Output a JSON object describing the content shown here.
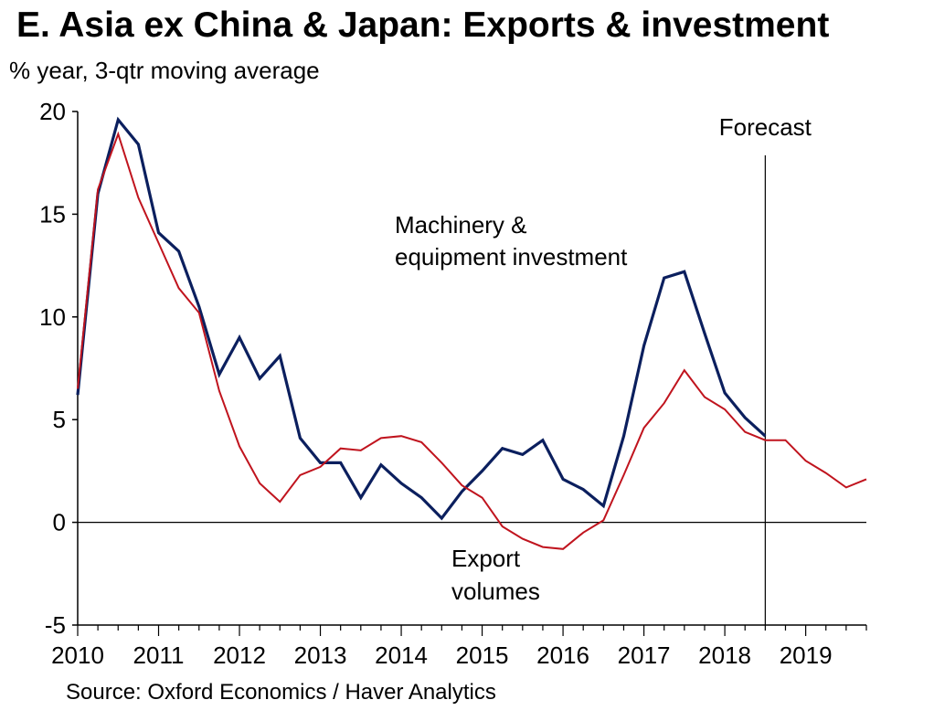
{
  "title": "E. Asia ex China & Japan: Exports & investment",
  "subtitle": "% year, 3-qtr moving average",
  "source": "Source: Oxford Economics / Haver Analytics",
  "forecast_label": "Forecast",
  "colors": {
    "machinery": "#0b1f5e",
    "exports": "#c0141e"
  },
  "chart_data": {
    "type": "line",
    "x_tick_labels": [
      "2010",
      "2011",
      "2012",
      "2013",
      "2014",
      "2015",
      "2016",
      "2017",
      "2018",
      "2019"
    ],
    "y_tick_labels": [
      "20",
      "15",
      "10",
      "5",
      "0",
      "-5"
    ],
    "y_ticks": [
      20,
      15,
      10,
      5,
      0,
      -5
    ],
    "ylim": [
      -5,
      20
    ],
    "xlim": [
      2010.0,
      2019.75
    ],
    "forecast_start": 2018.5,
    "grid": false,
    "series": [
      {
        "name": "Machinery & equipment investment",
        "label_lines": [
          "Machinery &",
          "equipment investment"
        ],
        "x": [
          2010.0,
          2010.25,
          2010.5,
          2010.75,
          2011.0,
          2011.25,
          2011.5,
          2011.75,
          2012.0,
          2012.25,
          2012.5,
          2012.75,
          2013.0,
          2013.25,
          2013.5,
          2013.75,
          2014.0,
          2014.25,
          2014.5,
          2014.75,
          2015.0,
          2015.25,
          2015.5,
          2015.75,
          2016.0,
          2016.25,
          2016.5,
          2016.75,
          2017.0,
          2017.25,
          2017.5,
          2017.75,
          2018.0,
          2018.25,
          2018.5
        ],
        "values": [
          6.2,
          16.0,
          19.6,
          18.4,
          14.1,
          13.2,
          10.5,
          7.2,
          9.0,
          7.0,
          8.1,
          4.1,
          2.9,
          2.9,
          1.2,
          2.8,
          1.9,
          1.2,
          0.2,
          1.5,
          2.5,
          3.6,
          3.3,
          4.0,
          2.1,
          1.6,
          0.8,
          4.2,
          8.6,
          11.9,
          12.2,
          9.2,
          6.3,
          5.1,
          4.2
        ]
      },
      {
        "name": "Export volumes",
        "label_lines": [
          "Export",
          "volumes"
        ],
        "x": [
          2010.0,
          2010.25,
          2010.5,
          2010.75,
          2011.0,
          2011.25,
          2011.5,
          2011.75,
          2012.0,
          2012.25,
          2012.5,
          2012.75,
          2013.0,
          2013.25,
          2013.5,
          2013.75,
          2014.0,
          2014.25,
          2014.5,
          2014.75,
          2015.0,
          2015.25,
          2015.5,
          2015.75,
          2016.0,
          2016.25,
          2016.5,
          2016.75,
          2017.0,
          2017.25,
          2017.5,
          2017.75,
          2018.0,
          2018.25,
          2018.5,
          2018.75,
          2019.0,
          2019.25,
          2019.5,
          2019.75
        ],
        "values": [
          6.5,
          16.2,
          18.9,
          15.8,
          13.6,
          11.4,
          10.2,
          6.4,
          3.7,
          1.9,
          1.0,
          2.3,
          2.7,
          3.6,
          3.5,
          4.1,
          4.2,
          3.9,
          2.9,
          1.8,
          1.2,
          -0.2,
          -0.8,
          -1.2,
          -1.3,
          -0.5,
          0.1,
          2.3,
          4.6,
          5.8,
          7.4,
          6.1,
          5.5,
          4.4,
          4.0,
          4.0,
          3.0,
          2.4,
          1.7,
          2.1
        ]
      }
    ]
  }
}
